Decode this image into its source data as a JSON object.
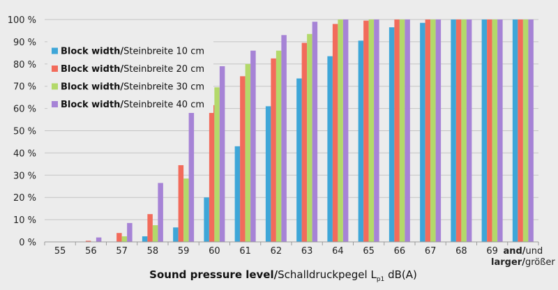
{
  "chart_data": {
    "type": "bar",
    "categories": [
      "55",
      "56",
      "57",
      "58",
      "59",
      "60",
      "61",
      "62",
      "63",
      "64",
      "65",
      "66",
      "67",
      "68",
      "69",
      "and/und larger/größer"
    ],
    "category_label_lines": {
      "and/und larger/größer": [
        {
          "bold": "and/",
          "normal": "und"
        },
        {
          "bold": "larger/",
          "normal": "größer"
        }
      ]
    },
    "series": [
      {
        "name": "Block width/Steinbreite 10 cm",
        "name_bold": "Block width/",
        "name_normal": "Steinbreite 10 cm",
        "color": "#3ea6d8",
        "values": [
          0,
          0,
          0,
          2.5,
          6.5,
          20,
          43,
          61,
          73.5,
          83.5,
          90.5,
          96.5,
          98.5,
          100,
          100,
          100
        ]
      },
      {
        "name": "Block width/Steinbreite 20 cm",
        "name_bold": "Block width/",
        "name_normal": "Steinbreite 20 cm",
        "color": "#f26b5b",
        "values": [
          0,
          0.5,
          4,
          12.5,
          34.5,
          61.5,
          74.5,
          82.5,
          89.5,
          98,
          99.5,
          100,
          100,
          100,
          100,
          100
        ]
      },
      {
        "name": "Block width/Steinbreite 30 cm",
        "name_bold": "Block width/",
        "name_normal": "Steinbreite 30 cm",
        "color": "#b3d96a",
        "values": [
          0,
          0,
          2.5,
          7.5,
          28.5,
          69.5,
          80,
          86,
          93.5,
          100,
          100,
          100,
          100,
          100,
          100,
          100
        ]
      },
      {
        "name": "Block width/Steinbreite 40 cm",
        "name_bold": "Block width/",
        "name_normal": "Steinbreite 40 cm",
        "color": "#a683d6",
        "values": [
          0,
          2,
          8.5,
          26.5,
          58,
          79,
          86,
          93,
          99,
          100,
          100,
          100,
          100,
          100,
          100,
          100
        ]
      }
    ],
    "yticks": [
      "0 %",
      "10 %",
      "20 %",
      "30 %",
      "40 %",
      "50 %",
      "60 %",
      "70 %",
      "80 %",
      "90 %",
      "100 %"
    ],
    "ylim": [
      0,
      100
    ],
    "xlabel_bold": "Sound pressure level/",
    "xlabel_normal": "Schalldruckpegel L",
    "xlabel_sub": "p1",
    "xlabel_tail": " dB(A)",
    "legend_position": "top-left",
    "grid": "horizontal",
    "colors": {
      "background": "#ececec",
      "grid": "#c4c4c4",
      "axis": "#9a9a9a"
    }
  }
}
